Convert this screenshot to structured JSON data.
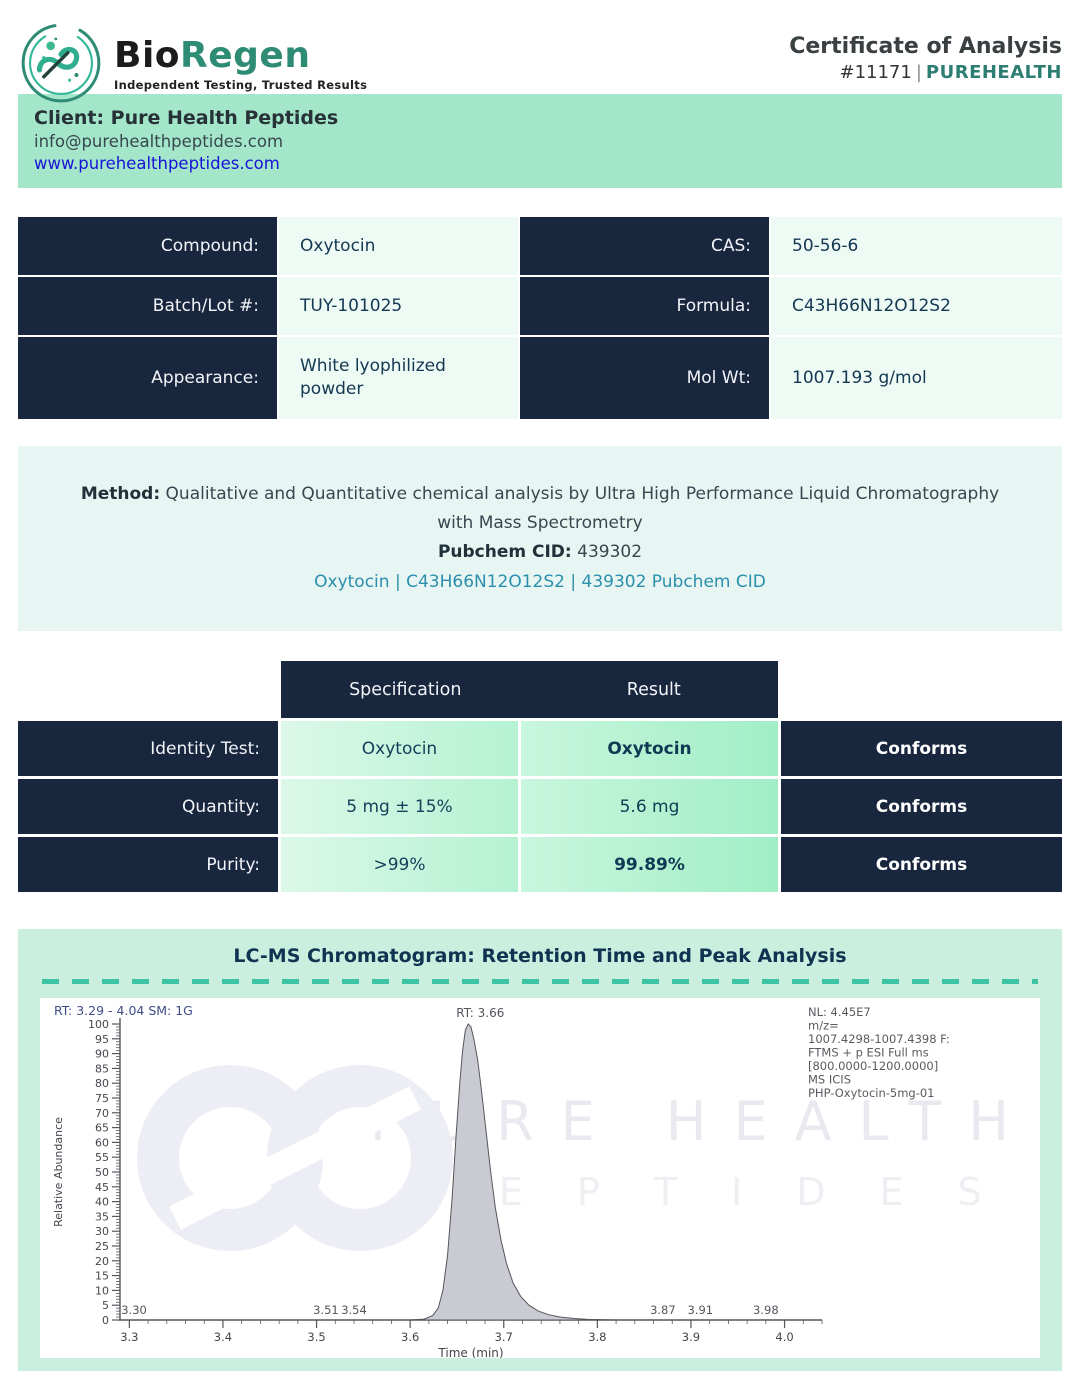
{
  "header": {
    "brand_bio": "Bio",
    "brand_regen": "Regen",
    "tagline": "Independent Testing, Trusted Results",
    "title": "Certificate of Analysis",
    "cert_number": "#11171",
    "separator": "|",
    "client_brand": "PUREHEALTH"
  },
  "client": {
    "name_line": "Client: Pure Health Peptides",
    "email": "info@purehealthpeptides.com",
    "website": "www.purehealthpeptides.com"
  },
  "compound_info": {
    "rows": [
      {
        "label_left": "Compound:",
        "value_left": "Oxytocin",
        "label_right": "CAS:",
        "value_right": "50-56-6"
      },
      {
        "label_left": "Batch/Lot #:",
        "value_left": "TUY-101025",
        "label_right": "Formula:",
        "value_right": "C43H66N12O12S2"
      },
      {
        "label_left": "Appearance:",
        "value_left": "White lyophilized powder",
        "label_right": "Mol Wt:",
        "value_right": "1007.193 g/mol"
      }
    ]
  },
  "method": {
    "label": "Method:",
    "text": "Qualitative and Quantitative chemical analysis by Ultra High Performance Liquid Chromatography with Mass Spectrometry",
    "pubchem_label": "Pubchem CID:",
    "pubchem_value": "439302",
    "link": "Oxytocin | C43H66N12O12S2 | 439302 Pubchem CID"
  },
  "results_table": {
    "col_headers": {
      "spec": "Specification",
      "result": "Result"
    },
    "rows": [
      {
        "label": "Identity Test:",
        "spec": "Oxytocin",
        "result": "Oxytocin",
        "status": "Conforms"
      },
      {
        "label": "Quantity:",
        "spec": "5 mg ± 15%",
        "result": "5.6 mg",
        "status": "Conforms"
      },
      {
        "label": "Purity:",
        "spec": ">99%",
        "result": "99.89%",
        "status": "Conforms"
      }
    ]
  },
  "chromatogram": {
    "section_title": "LC-MS Chromatogram: Retention Time and Peak Analysis",
    "watermark_line1": "PURE HEALTH",
    "watermark_line2": "PEPTIDES"
  },
  "chart_data": {
    "type": "area",
    "title": "LC-MS Chromatogram",
    "xlabel": "Time (min)",
    "ylabel": "Relative Abundance",
    "xlim": [
      3.29,
      4.04
    ],
    "ylim": [
      0,
      100
    ],
    "x_ticks": [
      3.3,
      3.4,
      3.5,
      3.6,
      3.7,
      3.8,
      3.9,
      4.0
    ],
    "x_minor_step": 0.02,
    "y_major_step": 5,
    "y_minor_step": 1,
    "header_left": "RT: 3.29 - 4.04",
    "header_sm": "SM: 1G",
    "peak_rt": 3.66,
    "peak_label": "RT: 3.66",
    "baseline_labels": [
      {
        "x": 3.305,
        "label": "3.30"
      },
      {
        "x": 3.51,
        "label": "3.51"
      },
      {
        "x": 3.54,
        "label": "3.54"
      },
      {
        "x": 3.87,
        "label": "3.87"
      },
      {
        "x": 3.91,
        "label": "3.91"
      },
      {
        "x": 3.98,
        "label": "3.98"
      }
    ],
    "annotation_lines": [
      "NL: 4.45E7",
      "m/z=",
      "1007.4298-1007.4398 F:",
      "FTMS + p ESI Full ms",
      "[800.0000-1200.0000]",
      "MS  ICIS",
      "PHP-Oxytocin-5mg-01"
    ],
    "peak_points": [
      [
        3.29,
        0
      ],
      [
        3.6,
        0
      ],
      [
        3.615,
        0.3
      ],
      [
        3.624,
        1.5
      ],
      [
        3.63,
        4
      ],
      [
        3.635,
        10
      ],
      [
        3.64,
        22
      ],
      [
        3.645,
        42
      ],
      [
        3.649,
        62
      ],
      [
        3.653,
        80
      ],
      [
        3.656,
        91
      ],
      [
        3.659,
        98
      ],
      [
        3.662,
        100
      ],
      [
        3.665,
        99
      ],
      [
        3.668,
        95
      ],
      [
        3.672,
        88
      ],
      [
        3.676,
        78
      ],
      [
        3.681,
        64
      ],
      [
        3.686,
        50
      ],
      [
        3.691,
        38
      ],
      [
        3.697,
        27
      ],
      [
        3.703,
        19
      ],
      [
        3.71,
        12.5
      ],
      [
        3.718,
        8
      ],
      [
        3.727,
        5
      ],
      [
        3.737,
        3
      ],
      [
        3.748,
        1.8
      ],
      [
        3.76,
        1
      ],
      [
        3.775,
        0.5
      ],
      [
        3.79,
        0.2
      ],
      [
        3.82,
        0
      ],
      [
        4.04,
        0
      ]
    ],
    "legend_position": "none",
    "grid": false
  },
  "colors": {
    "navy": "#18263e",
    "mint_band": "#a4e6c9",
    "mint_section": "#cbefdf",
    "teal_accent": "#3ec3a4",
    "brand_teal": "#2e8b74",
    "link_blue": "#1713d6",
    "link_teal": "#2b8fad",
    "peak_fill": "#c9cad2"
  }
}
